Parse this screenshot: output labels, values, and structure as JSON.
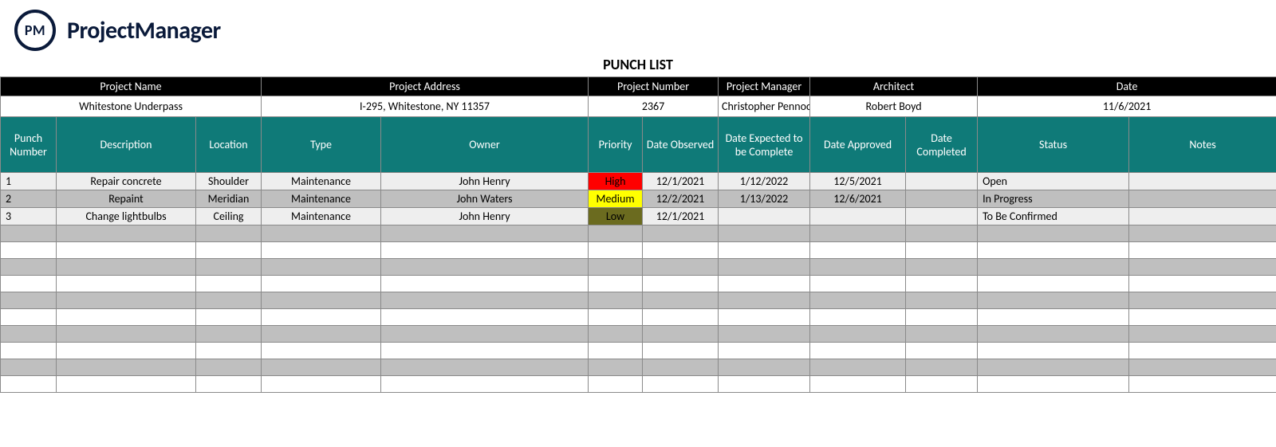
{
  "brand": {
    "badge": "PM",
    "name": "ProjectManager"
  },
  "title": "PUNCH LIST",
  "colors": {
    "teal": "#0f7a78",
    "black": "#000000",
    "rowLight": "#eeeeee",
    "rowGray": "#bfbfbf",
    "priHigh": "#ff0000",
    "priMed": "#ffff00",
    "priLow": "#6b6b1f"
  },
  "meta": {
    "labels": {
      "projectName": "Project Name",
      "projectAddress": "Project Address",
      "projectNumber": "Project Number",
      "projectManager": "Project Manager",
      "architect": "Architect",
      "date": "Date"
    },
    "values": {
      "projectName": "Whitestone Underpass",
      "projectAddress": "I-295, Whitestone, NY 11357",
      "projectNumber": "2367",
      "projectManager": "Christopher Pennock",
      "architect": "Robert Boyd",
      "date": "11/6/2021"
    }
  },
  "columns": [
    "Punch Number",
    "Description",
    "Location",
    "Type",
    "Owner",
    "Priority",
    "Date Observed",
    "Date Expected to be Complete",
    "Date Approved",
    "Date Completed",
    "Status",
    "Notes"
  ],
  "rows": [
    {
      "num": "1",
      "desc": "Repair concrete",
      "loc": "Shoulder",
      "type": "Maintenance",
      "owner": "John Henry",
      "pri": "High",
      "priClass": "pri-high",
      "obs": "12/1/2021",
      "exp": "1/12/2022",
      "appr": "12/5/2021",
      "comp": "",
      "status": "Open",
      "notes": ""
    },
    {
      "num": "2",
      "desc": "Repaint",
      "loc": "Meridian",
      "type": "Maintenance",
      "owner": "John Waters",
      "pri": "Medium",
      "priClass": "pri-med",
      "obs": "12/2/2021",
      "exp": "1/13/2022",
      "appr": "12/6/2021",
      "comp": "",
      "status": "In Progress",
      "notes": ""
    },
    {
      "num": "3",
      "desc": "Change lightbulbs",
      "loc": "Ceiling",
      "type": "Maintenance",
      "owner": "John Henry",
      "pri": "Low",
      "priClass": "pri-low",
      "obs": "12/1/2021",
      "exp": "",
      "appr": "",
      "comp": "",
      "status": "To Be Confirmed",
      "notes": ""
    }
  ],
  "emptyRowCount": 10
}
